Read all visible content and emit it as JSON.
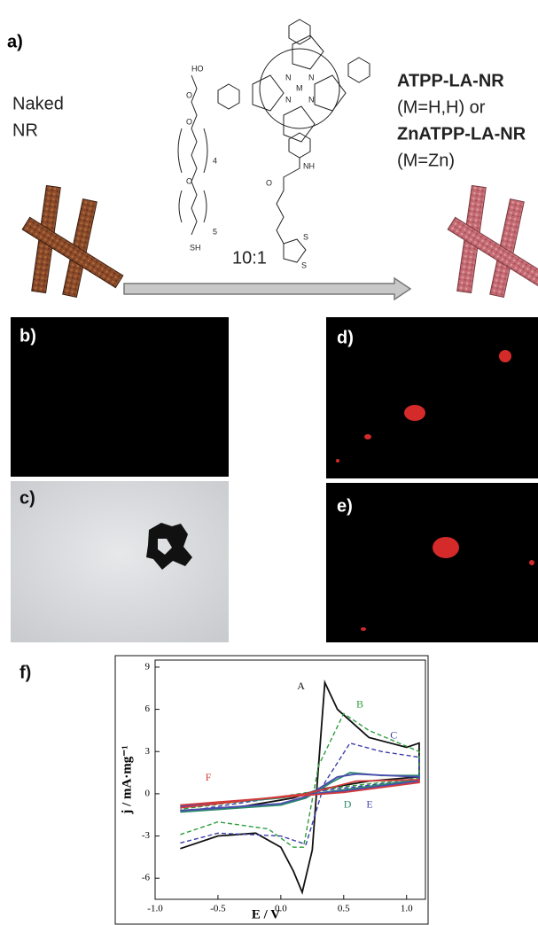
{
  "panel_a": {
    "label": "a)",
    "left_text": [
      "Naked",
      "NR"
    ],
    "right_text": [
      "ATPP-LA-NR",
      "(M=H,H) or",
      "ZnATPP-LA-NR",
      "(M=Zn)"
    ],
    "ratio": "10:1",
    "molecule_labels": [
      "HO",
      "O",
      "O",
      "4",
      "O",
      "5",
      "SH",
      "M",
      "N",
      "N",
      "N",
      "N",
      "NH",
      "O",
      "S",
      "S"
    ]
  },
  "panel_labels": [
    "b)",
    "c)",
    "d)",
    "e)",
    "f)"
  ],
  "chart_data": {
    "type": "line",
    "xlabel": "E / V",
    "ylabel": "j / mA·mg⁻¹",
    "xlim": [
      -1.0,
      1.15
    ],
    "ylim": [
      -7.5,
      9.5
    ],
    "xticks": [
      {
        "value": -1.0,
        "label": "-1.0"
      },
      {
        "value": -0.5,
        "label": "-0.5"
      },
      {
        "value": 0.0,
        "label": "0.0"
      },
      {
        "value": 0.5,
        "label": "0.5"
      },
      {
        "value": 1.0,
        "label": "1.0"
      }
    ],
    "yticks": [
      -6,
      -3,
      0,
      3,
      6,
      9
    ],
    "series": [
      {
        "name": "A",
        "color": "#111111",
        "dashed": false,
        "x": [
          -0.8,
          -0.5,
          -0.2,
          0.0,
          0.1,
          0.17,
          0.25,
          0.3,
          0.35,
          0.45,
          0.7,
          1.0,
          1.1,
          1.1,
          0.7,
          0.3,
          0.1,
          -0.3,
          -0.8
        ],
        "values": [
          -3.9,
          -3.0,
          -2.8,
          -3.8,
          -5.5,
          -7.0,
          -4.0,
          2.0,
          7.9,
          6.0,
          4.0,
          3.3,
          3.6,
          1.2,
          0.9,
          0.3,
          -0.3,
          -0.9,
          -1.2
        ]
      },
      {
        "name": "B",
        "color": "#2e9e3e",
        "dashed": true,
        "x": [
          -0.8,
          -0.5,
          -0.1,
          0.1,
          0.18,
          0.3,
          0.5,
          0.7,
          1.1,
          1.1,
          0.5,
          0.0,
          -0.8
        ],
        "values": [
          -2.9,
          -2.0,
          -2.5,
          -3.8,
          -3.8,
          2.0,
          5.7,
          4.5,
          3.0,
          1.1,
          0.5,
          -0.2,
          -1.1
        ]
      },
      {
        "name": "C",
        "color": "#3b3fa8",
        "dashed": true,
        "x": [
          -0.8,
          -0.5,
          0.0,
          0.2,
          0.35,
          0.55,
          0.8,
          1.1,
          1.1,
          0.4,
          -0.8
        ],
        "values": [
          -3.5,
          -2.8,
          -3.0,
          -3.6,
          0.8,
          3.6,
          3.0,
          2.6,
          1.0,
          0.3,
          -1.3
        ]
      },
      {
        "name": "D",
        "color": "#2a8a6a",
        "dashed": false,
        "x": [
          -0.8,
          0.0,
          0.2,
          0.4,
          0.55,
          0.8,
          1.1,
          1.1,
          0.6,
          0.0,
          -0.8
        ],
        "values": [
          -1.3,
          -0.8,
          -0.3,
          0.8,
          1.5,
          1.3,
          1.3,
          1.0,
          0.4,
          -0.3,
          -0.9
        ]
      },
      {
        "name": "E",
        "color": "#4a4ab0",
        "dashed": false,
        "x": [
          -0.8,
          0.0,
          0.2,
          0.45,
          0.6,
          1.1,
          1.1,
          0.5,
          -0.8
        ],
        "values": [
          -1.2,
          -0.7,
          -0.2,
          1.2,
          1.4,
          1.2,
          0.9,
          0.2,
          -0.9
        ]
      },
      {
        "name": "F",
        "color": "#d33a3a",
        "dashed": false,
        "x": [
          -0.8,
          0.2,
          0.6,
          1.1,
          1.1,
          0.5,
          -0.8
        ],
        "values": [
          -1.0,
          0.0,
          0.9,
          1.0,
          0.8,
          0.1,
          -0.8
        ]
      }
    ],
    "annotations": [
      {
        "text": "A",
        "x": 0.13,
        "y": 7.6
      },
      {
        "text": "B",
        "x": 0.6,
        "y": 6.3
      },
      {
        "text": "C",
        "x": 0.87,
        "y": 4.1
      },
      {
        "text": "D",
        "x": 0.5,
        "y": -0.8
      },
      {
        "text": "E",
        "x": 0.68,
        "y": -0.8
      },
      {
        "text": "F",
        "x": -0.6,
        "y": 1.1
      }
    ]
  }
}
